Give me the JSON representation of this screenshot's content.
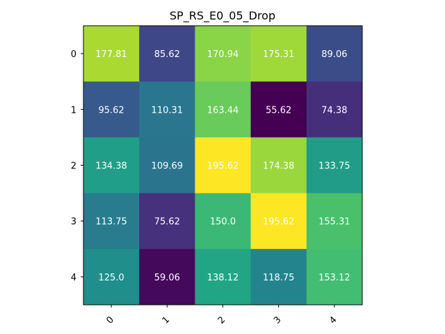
{
  "chart_data": {
    "type": "heatmap",
    "title": "SP_RS_E0_05_Drop",
    "xlabel": "",
    "ylabel": "",
    "x_ticks": [
      "0",
      "1",
      "2",
      "3",
      "4"
    ],
    "y_ticks": [
      "0",
      "1",
      "2",
      "3",
      "4"
    ],
    "values": [
      [
        177.81,
        85.62,
        170.94,
        175.31,
        89.06
      ],
      [
        95.62,
        110.31,
        163.44,
        55.62,
        74.38
      ],
      [
        134.38,
        109.69,
        195.62,
        174.38,
        133.75
      ],
      [
        113.75,
        75.62,
        150.0,
        195.62,
        155.31
      ],
      [
        125.0,
        59.06,
        138.12,
        118.75,
        153.12
      ]
    ],
    "cell_labels": [
      [
        "177.81",
        "85.62",
        "170.94",
        "175.31",
        "89.06"
      ],
      [
        "95.62",
        "110.31",
        "163.44",
        "55.62",
        "74.38"
      ],
      [
        "134.38",
        "109.69",
        "195.62",
        "174.38",
        "133.75"
      ],
      [
        "113.75",
        "75.62",
        "150.0",
        "195.62",
        "155.31"
      ],
      [
        "125.0",
        "59.06",
        "138.12",
        "118.75",
        "153.12"
      ]
    ],
    "colormap": "viridis",
    "x_tick_rotation": "45 degrees",
    "grid": false,
    "legend": "none"
  }
}
